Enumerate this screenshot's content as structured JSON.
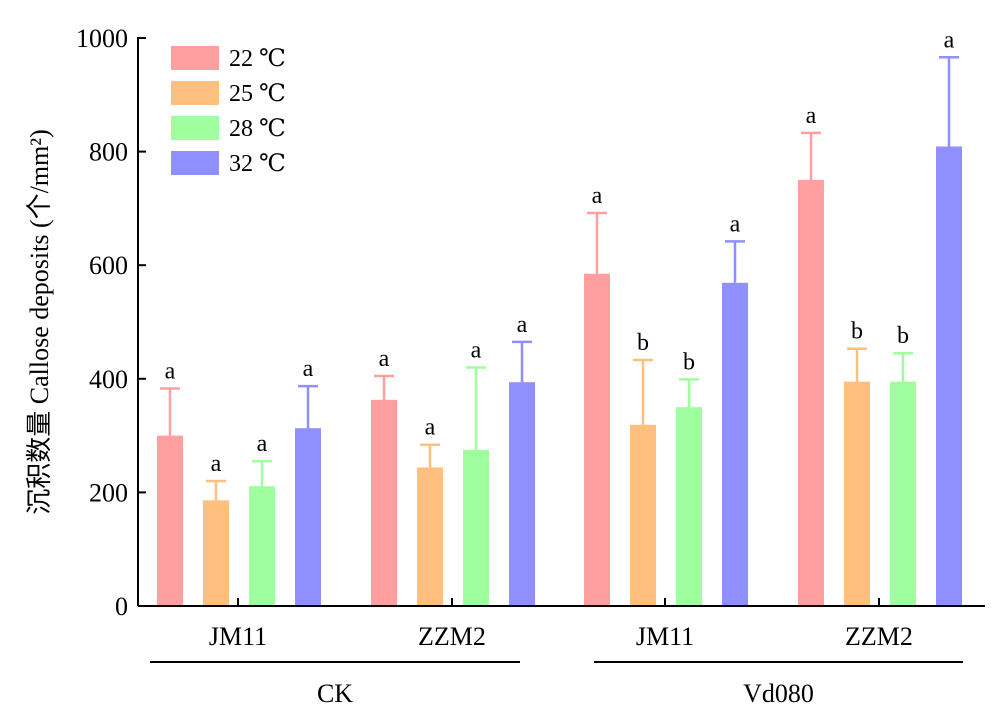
{
  "chart_data": {
    "type": "bar",
    "ylabel": "沉积数量 Callose deposits (个/mm²)",
    "ylim": [
      0,
      1000
    ],
    "yticks": [
      "0",
      "200",
      "400",
      "600",
      "800",
      "1000"
    ],
    "groups": [
      {
        "label": "CK",
        "subgroups": [
          "JM11",
          "ZZM2"
        ]
      },
      {
        "label": "Vd080",
        "subgroups": [
          "JM11",
          "ZZM2"
        ]
      }
    ],
    "series": [
      {
        "name": "22 ℃",
        "color": "#FF9F9F",
        "values": [
          300,
          363,
          585,
          750
        ],
        "errors": [
          83,
          42,
          107,
          83
        ],
        "letters": [
          "a",
          "a",
          "a",
          "a"
        ]
      },
      {
        "name": "25 ℃",
        "color": "#FFBF7F",
        "values": [
          186,
          244,
          319,
          395
        ],
        "errors": [
          34,
          40,
          114,
          58
        ],
        "letters": [
          "a",
          "a",
          "b",
          "b"
        ]
      },
      {
        "name": "28 ℃",
        "color": "#9FFF9F",
        "values": [
          211,
          275,
          350,
          395
        ],
        "errors": [
          44,
          145,
          49,
          50
        ],
        "letters": [
          "a",
          "a",
          "b",
          "b"
        ]
      },
      {
        "name": "32 ℃",
        "color": "#8F8FFF",
        "values": [
          313,
          394,
          569,
          809
        ],
        "errors": [
          74,
          71,
          73,
          157
        ],
        "letters": [
          "a",
          "a",
          "a",
          "a"
        ]
      }
    ],
    "legend_position": "top-left"
  }
}
